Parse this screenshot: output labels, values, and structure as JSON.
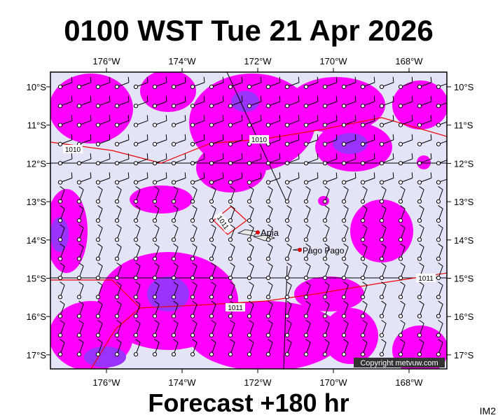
{
  "header": {
    "title": "0100 WST Tue 21 Apr 2026"
  },
  "map": {
    "lon_labels": [
      "176°W",
      "174°W",
      "172°W",
      "170°W",
      "168°W"
    ],
    "lat_labels": [
      "10°S",
      "11°S",
      "12°S",
      "13°S",
      "14°S",
      "15°S",
      "16°S",
      "17°S"
    ],
    "isobar_labels": [
      "1010",
      "1010",
      "1011",
      "1011",
      "1011"
    ],
    "places": [
      "Apia",
      "Pago Pago"
    ],
    "copyright": "Copyright metvuw.com"
  },
  "footer": {
    "forecast": "Forecast +180 hr",
    "code": "IM2"
  }
}
